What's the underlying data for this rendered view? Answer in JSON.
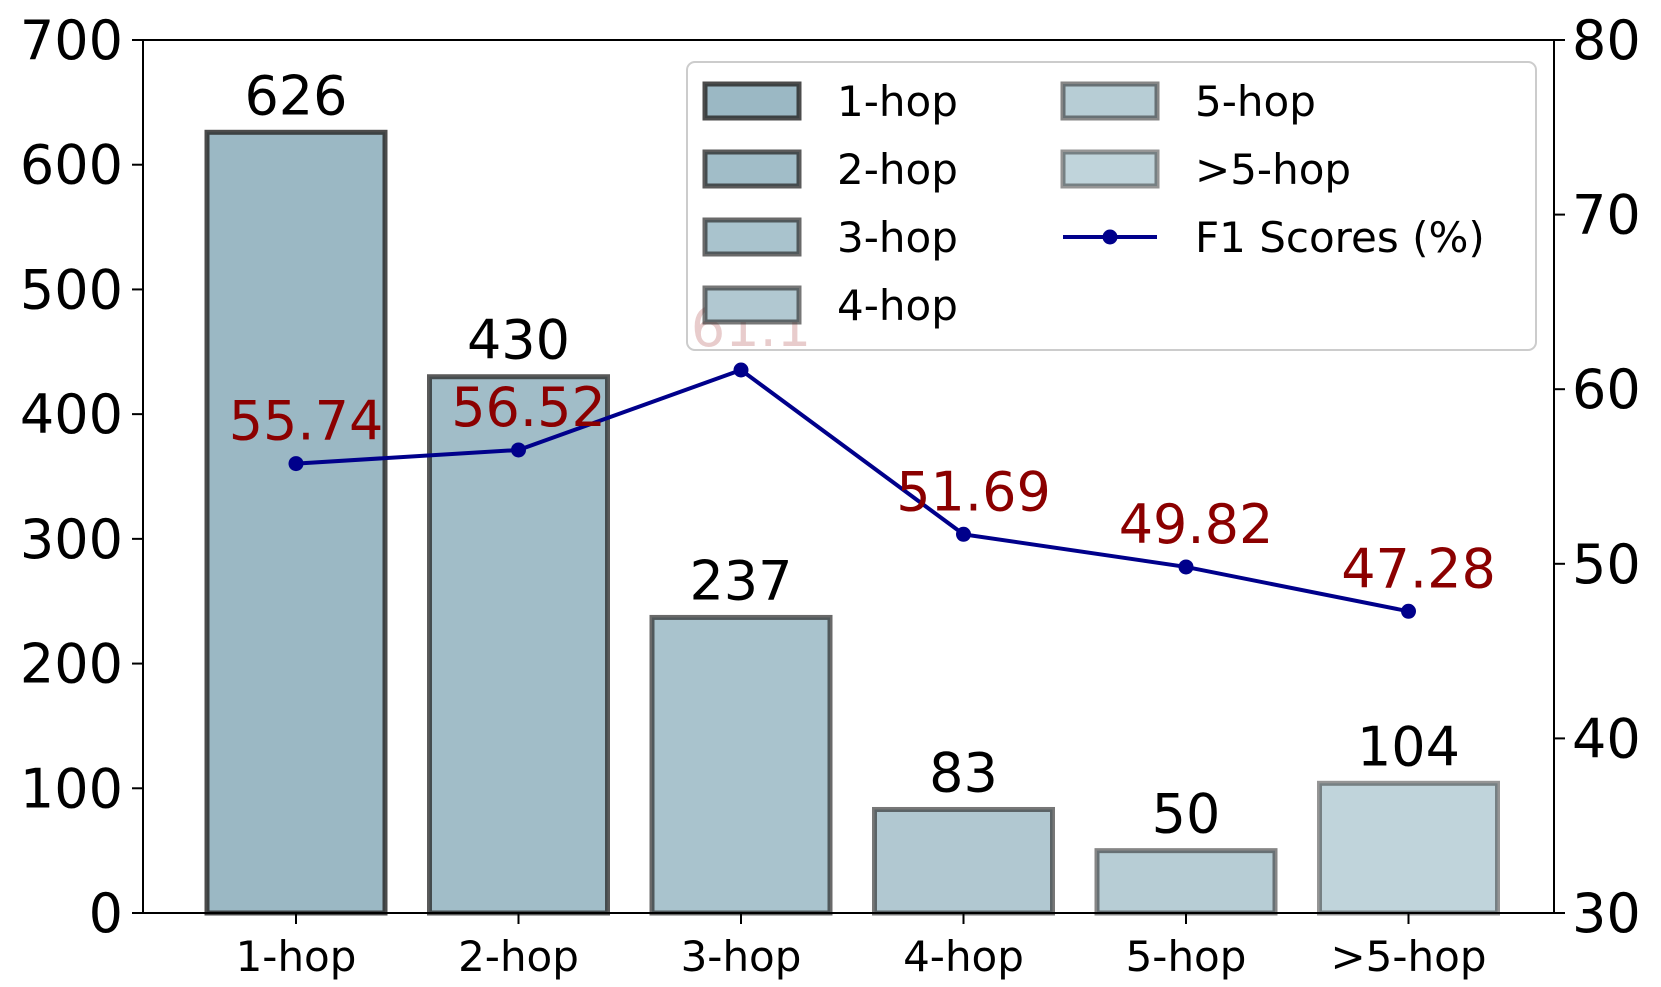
{
  "chart_data": {
    "type": "bar",
    "categories": [
      "1-hop",
      "2-hop",
      "3-hop",
      "4-hop",
      "5-hop",
      ">5-hop"
    ],
    "bar_values": [
      626,
      430,
      237,
      83,
      50,
      104
    ],
    "bar_labels": [
      "626",
      "430",
      "237",
      "83",
      "50",
      "104"
    ],
    "bar_colors": [
      "#9bb8c4",
      "#a1bdc8",
      "#a9c3cd",
      "#b1c8d1",
      "#b7cdd5",
      "#c0d4db"
    ],
    "bar_edge_color": "#2b2b2b",
    "series_legend": [
      "1-hop",
      "2-hop",
      "3-hop",
      "4-hop",
      "5-hop",
      ">5-hop"
    ],
    "line_series": {
      "name": "F1 Scores (%)",
      "values": [
        55.74,
        56.52,
        61.1,
        51.69,
        49.82,
        47.28
      ],
      "labels": [
        "55.74",
        "56.52",
        "61.1",
        "51.69",
        "49.82",
        "47.28"
      ],
      "color": "#00008b",
      "label_color": "#8b0000"
    },
    "y_left": {
      "range": [
        0,
        700
      ],
      "ticks": [
        0,
        100,
        200,
        300,
        400,
        500,
        600,
        700
      ],
      "tick_labels": [
        "0",
        "100",
        "200",
        "300",
        "400",
        "500",
        "600",
        "700"
      ]
    },
    "y_right": {
      "range": [
        30,
        80
      ],
      "ticks": [
        30,
        40,
        50,
        60,
        70,
        80
      ],
      "tick_labels": [
        "30",
        "40",
        "50",
        "60",
        "70",
        "80"
      ]
    },
    "legend_placement": "top-right",
    "grid": false
  }
}
